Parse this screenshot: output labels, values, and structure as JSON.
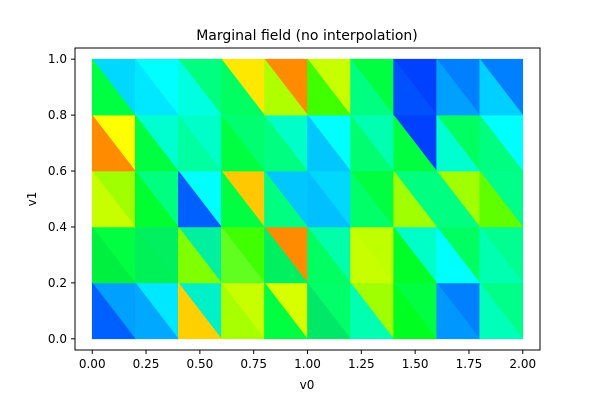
{
  "chart_data": {
    "type": "heatmap",
    "title": "Marginal field (no interpolation)",
    "xlabel": "v0",
    "ylabel": "v1",
    "xlim": [
      -0.08,
      2.08
    ],
    "ylim": [
      -0.04,
      1.04
    ],
    "x_ticks": [
      "0.00",
      "0.25",
      "0.50",
      "0.75",
      "1.00",
      "1.25",
      "1.50",
      "1.75",
      "2.00"
    ],
    "x_tick_values": [
      0,
      0.25,
      0.5,
      0.75,
      1.0,
      1.25,
      1.5,
      1.75,
      2.0
    ],
    "y_ticks": [
      "0.0",
      "0.2",
      "0.4",
      "0.6",
      "0.8",
      "1.0"
    ],
    "y_tick_values": [
      0,
      0.2,
      0.4,
      0.6,
      0.8,
      1.0
    ],
    "grid": false,
    "cell_width": 0.2,
    "cell_height": 0.2,
    "triangulation": "each cell split along the diagonal from top-left to bottom-right; upper-right triangle and lower-left triangle",
    "colormap": "jet",
    "rows": [
      {
        "y0": 0.0,
        "cells": [
          {
            "x0": 0.0,
            "upper": "#00a0ff",
            "lower": "#0060ff"
          },
          {
            "x0": 0.2,
            "upper": "#00e8ff",
            "lower": "#00a8ff"
          },
          {
            "x0": 0.4,
            "upper": "#00f0c8",
            "lower": "#ffd000"
          },
          {
            "x0": 0.6,
            "upper": "#c8ff00",
            "lower": "#a8ff00"
          },
          {
            "x0": 0.8,
            "upper": "#d8ff00",
            "lower": "#00ff40"
          },
          {
            "x0": 1.0,
            "upper": "#00ff68",
            "lower": "#00e868"
          },
          {
            "x0": 1.2,
            "upper": "#a0ff00",
            "lower": "#00ffb0"
          },
          {
            "x0": 1.4,
            "upper": "#00ff40",
            "lower": "#00ff20"
          },
          {
            "x0": 1.6,
            "upper": "#0080ff",
            "lower": "#0098ff"
          },
          {
            "x0": 1.8,
            "upper": "#00ff88",
            "lower": "#00ffb8"
          }
        ]
      },
      {
        "y0": 0.2,
        "cells": [
          {
            "x0": 0.0,
            "upper": "#00ff40",
            "lower": "#00f040"
          },
          {
            "x0": 0.2,
            "upper": "#00f060",
            "lower": "#00f058"
          },
          {
            "x0": 0.4,
            "upper": "#00f0a0",
            "lower": "#80ff00"
          },
          {
            "x0": 0.6,
            "upper": "#40ff00",
            "lower": "#60ff20"
          },
          {
            "x0": 0.8,
            "upper": "#ff8c00",
            "lower": "#00f060"
          },
          {
            "x0": 1.0,
            "upper": "#00ffa8",
            "lower": "#00ff60"
          },
          {
            "x0": 1.2,
            "upper": "#c0ff00",
            "lower": "#c8ff00"
          },
          {
            "x0": 1.4,
            "upper": "#00ffc8",
            "lower": "#00ff28"
          },
          {
            "x0": 1.6,
            "upper": "#00ff60",
            "lower": "#00ffff"
          },
          {
            "x0": 1.8,
            "upper": "#00ff90",
            "lower": "#00ffb0"
          }
        ]
      },
      {
        "y0": 0.4,
        "cells": [
          {
            "x0": 0.0,
            "upper": "#a0ff00",
            "lower": "#c8ff00"
          },
          {
            "x0": 0.2,
            "upper": "#00ff80",
            "lower": "#00ff30"
          },
          {
            "x0": 0.4,
            "upper": "#00ffff",
            "lower": "#0060ff"
          },
          {
            "x0": 0.6,
            "upper": "#ffc800",
            "lower": "#00ff40"
          },
          {
            "x0": 0.8,
            "upper": "#00c8ff",
            "lower": "#00ff80"
          },
          {
            "x0": 1.0,
            "upper": "#00d8ff",
            "lower": "#00c0ff"
          },
          {
            "x0": 1.2,
            "upper": "#00ff40",
            "lower": "#00ff68"
          },
          {
            "x0": 1.4,
            "upper": "#00ff80",
            "lower": "#a0ff00"
          },
          {
            "x0": 1.6,
            "upper": "#a0ff00",
            "lower": "#00ff80"
          },
          {
            "x0": 1.8,
            "upper": "#00ff88",
            "lower": "#60ff00"
          }
        ]
      },
      {
        "y0": 0.6,
        "cells": [
          {
            "x0": 0.0,
            "upper": "#ffff00",
            "lower": "#ff8c00"
          },
          {
            "x0": 0.2,
            "upper": "#00ffd0",
            "lower": "#00ff40"
          },
          {
            "x0": 0.4,
            "upper": "#00ffc8",
            "lower": "#00ffa0"
          },
          {
            "x0": 0.6,
            "upper": "#00ff70",
            "lower": "#00ff40"
          },
          {
            "x0": 0.8,
            "upper": "#00ffc8",
            "lower": "#00ff80"
          },
          {
            "x0": 1.0,
            "upper": "#00ffff",
            "lower": "#00c8ff"
          },
          {
            "x0": 1.2,
            "upper": "#00ffb0",
            "lower": "#00ff70"
          },
          {
            "x0": 1.4,
            "upper": "#0040ff",
            "lower": "#00ff40"
          },
          {
            "x0": 1.6,
            "upper": "#00ff60",
            "lower": "#00ffd0"
          },
          {
            "x0": 1.8,
            "upper": "#00ffff",
            "lower": "#00ff80"
          }
        ]
      },
      {
        "y0": 0.8,
        "cells": [
          {
            "x0": 0.0,
            "upper": "#00d8ff",
            "lower": "#00ff40"
          },
          {
            "x0": 0.2,
            "upper": "#00ffff",
            "lower": "#00e8ff"
          },
          {
            "x0": 0.4,
            "upper": "#00ff80",
            "lower": "#00ffe0"
          },
          {
            "x0": 0.6,
            "upper": "#ffe800",
            "lower": "#00ff60"
          },
          {
            "x0": 0.8,
            "upper": "#ff8c00",
            "lower": "#b0ff00"
          },
          {
            "x0": 1.0,
            "upper": "#c8ff00",
            "lower": "#40ff00"
          },
          {
            "x0": 1.2,
            "upper": "#00ff40",
            "lower": "#00ff80"
          },
          {
            "x0": 1.4,
            "upper": "#0040ff",
            "lower": "#0050ff"
          },
          {
            "x0": 1.6,
            "upper": "#0080ff",
            "lower": "#00a0ff"
          },
          {
            "x0": 1.8,
            "upper": "#0080ff",
            "lower": "#00d0ff"
          }
        ]
      }
    ]
  }
}
